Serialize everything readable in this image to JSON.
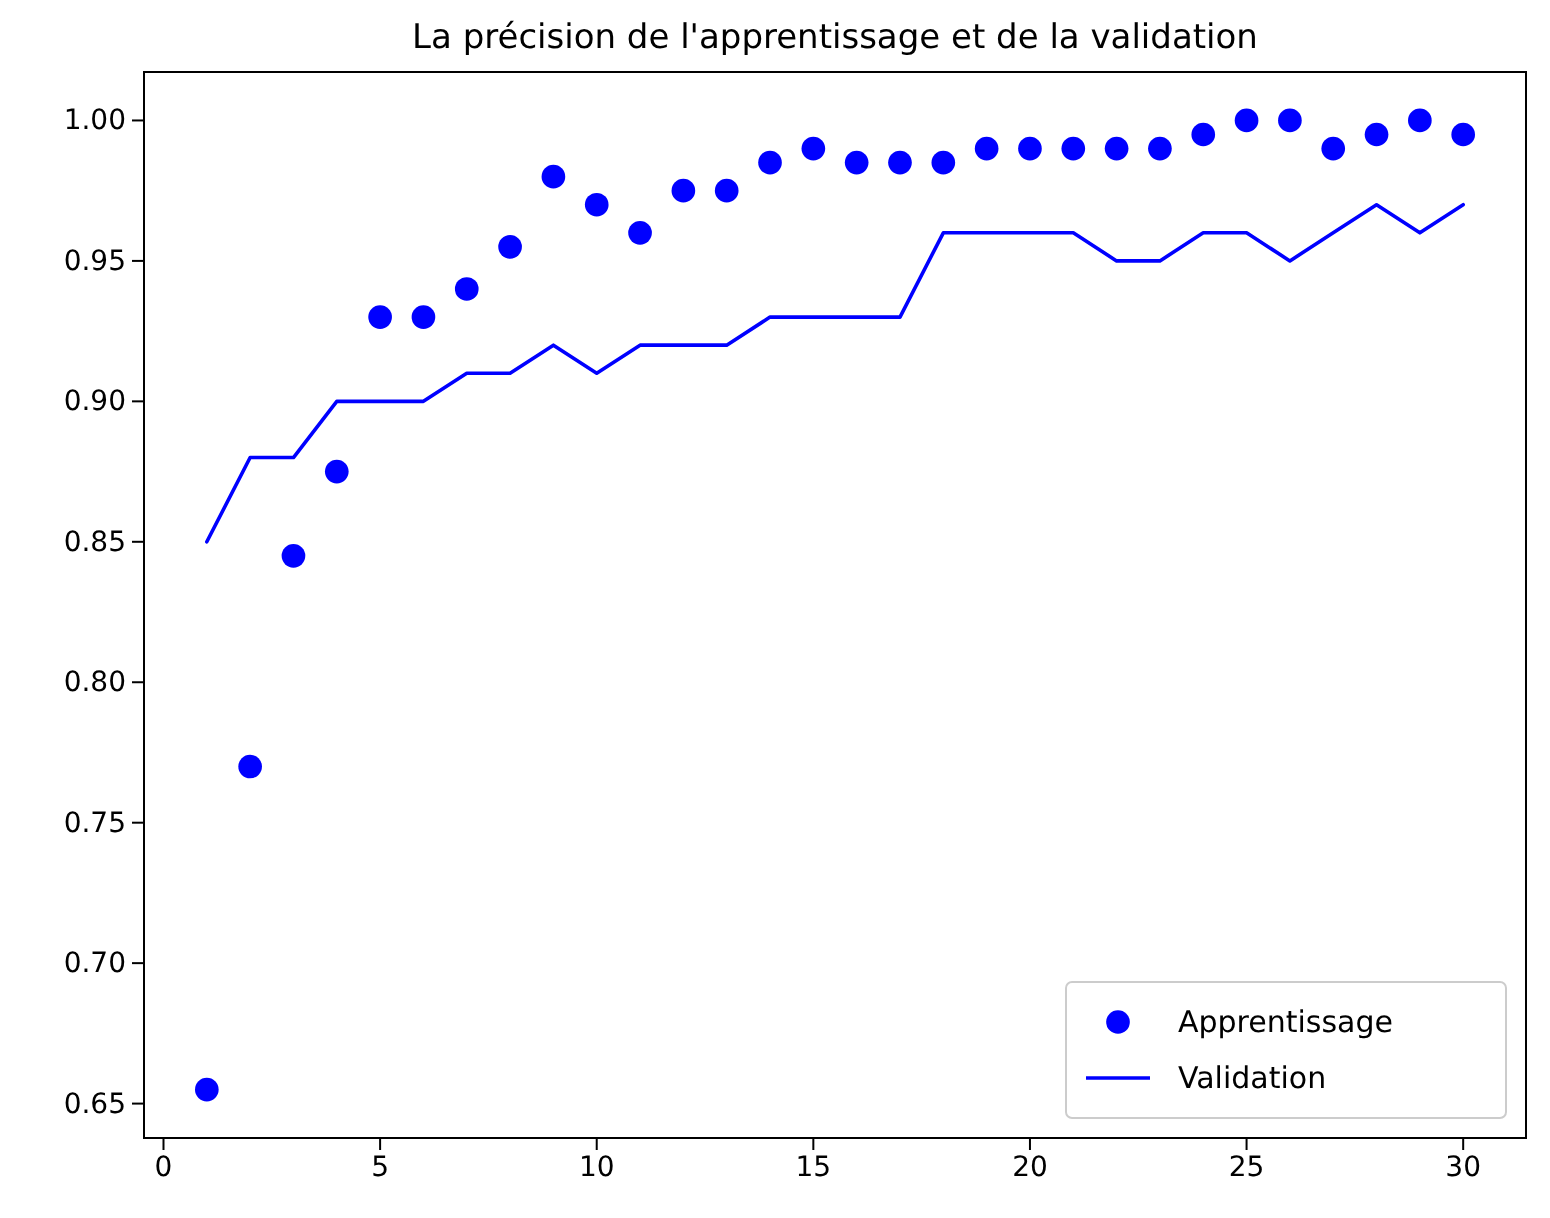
{
  "chart_data": {
    "type": "line",
    "title": "La précision de l'apprentissage et de la validation",
    "x": [
      1,
      2,
      3,
      4,
      5,
      6,
      7,
      8,
      9,
      10,
      11,
      12,
      13,
      14,
      15,
      16,
      17,
      18,
      19,
      20,
      21,
      22,
      23,
      24,
      25,
      26,
      27,
      28,
      29,
      30
    ],
    "series": [
      {
        "name": "Apprentissage",
        "type": "scatter",
        "color": "#0000ff",
        "marker": "circle",
        "values": [
          0.655,
          0.77,
          0.845,
          0.875,
          0.93,
          0.93,
          0.94,
          0.955,
          0.98,
          0.97,
          0.96,
          0.975,
          0.975,
          0.985,
          0.99,
          0.985,
          0.985,
          0.985,
          0.99,
          0.99,
          0.99,
          0.99,
          0.99,
          0.995,
          1.0,
          1.0,
          0.99,
          0.995,
          1.0,
          0.995
        ]
      },
      {
        "name": "Validation",
        "color": "#0000ff",
        "line_style": "solid",
        "values": [
          0.85,
          0.88,
          0.88,
          0.9,
          0.9,
          0.9,
          0.91,
          0.91,
          0.92,
          0.91,
          0.92,
          0.92,
          0.92,
          0.93,
          0.93,
          0.93,
          0.93,
          0.96,
          0.96,
          0.96,
          0.96,
          0.95,
          0.95,
          0.96,
          0.96,
          0.95,
          0.96,
          0.97,
          0.96,
          0.97
        ]
      }
    ],
    "xlim": [
      -0.45,
      31.45
    ],
    "xticks": [
      0,
      5,
      10,
      15,
      20,
      25,
      30
    ],
    "ylim": [
      0.63775,
      1.01725
    ],
    "yticks": [
      {
        "value": 0.65,
        "label": "0.65"
      },
      {
        "value": 0.7,
        "label": "0.70"
      },
      {
        "value": 0.75,
        "label": "0.75"
      },
      {
        "value": 0.8,
        "label": "0.80"
      },
      {
        "value": 0.85,
        "label": "0.85"
      },
      {
        "value": 0.9,
        "label": "0.90"
      },
      {
        "value": 0.95,
        "label": "0.95"
      },
      {
        "value": 1.0,
        "label": "1.00"
      }
    ],
    "grid": false,
    "legend": "bottom right"
  }
}
